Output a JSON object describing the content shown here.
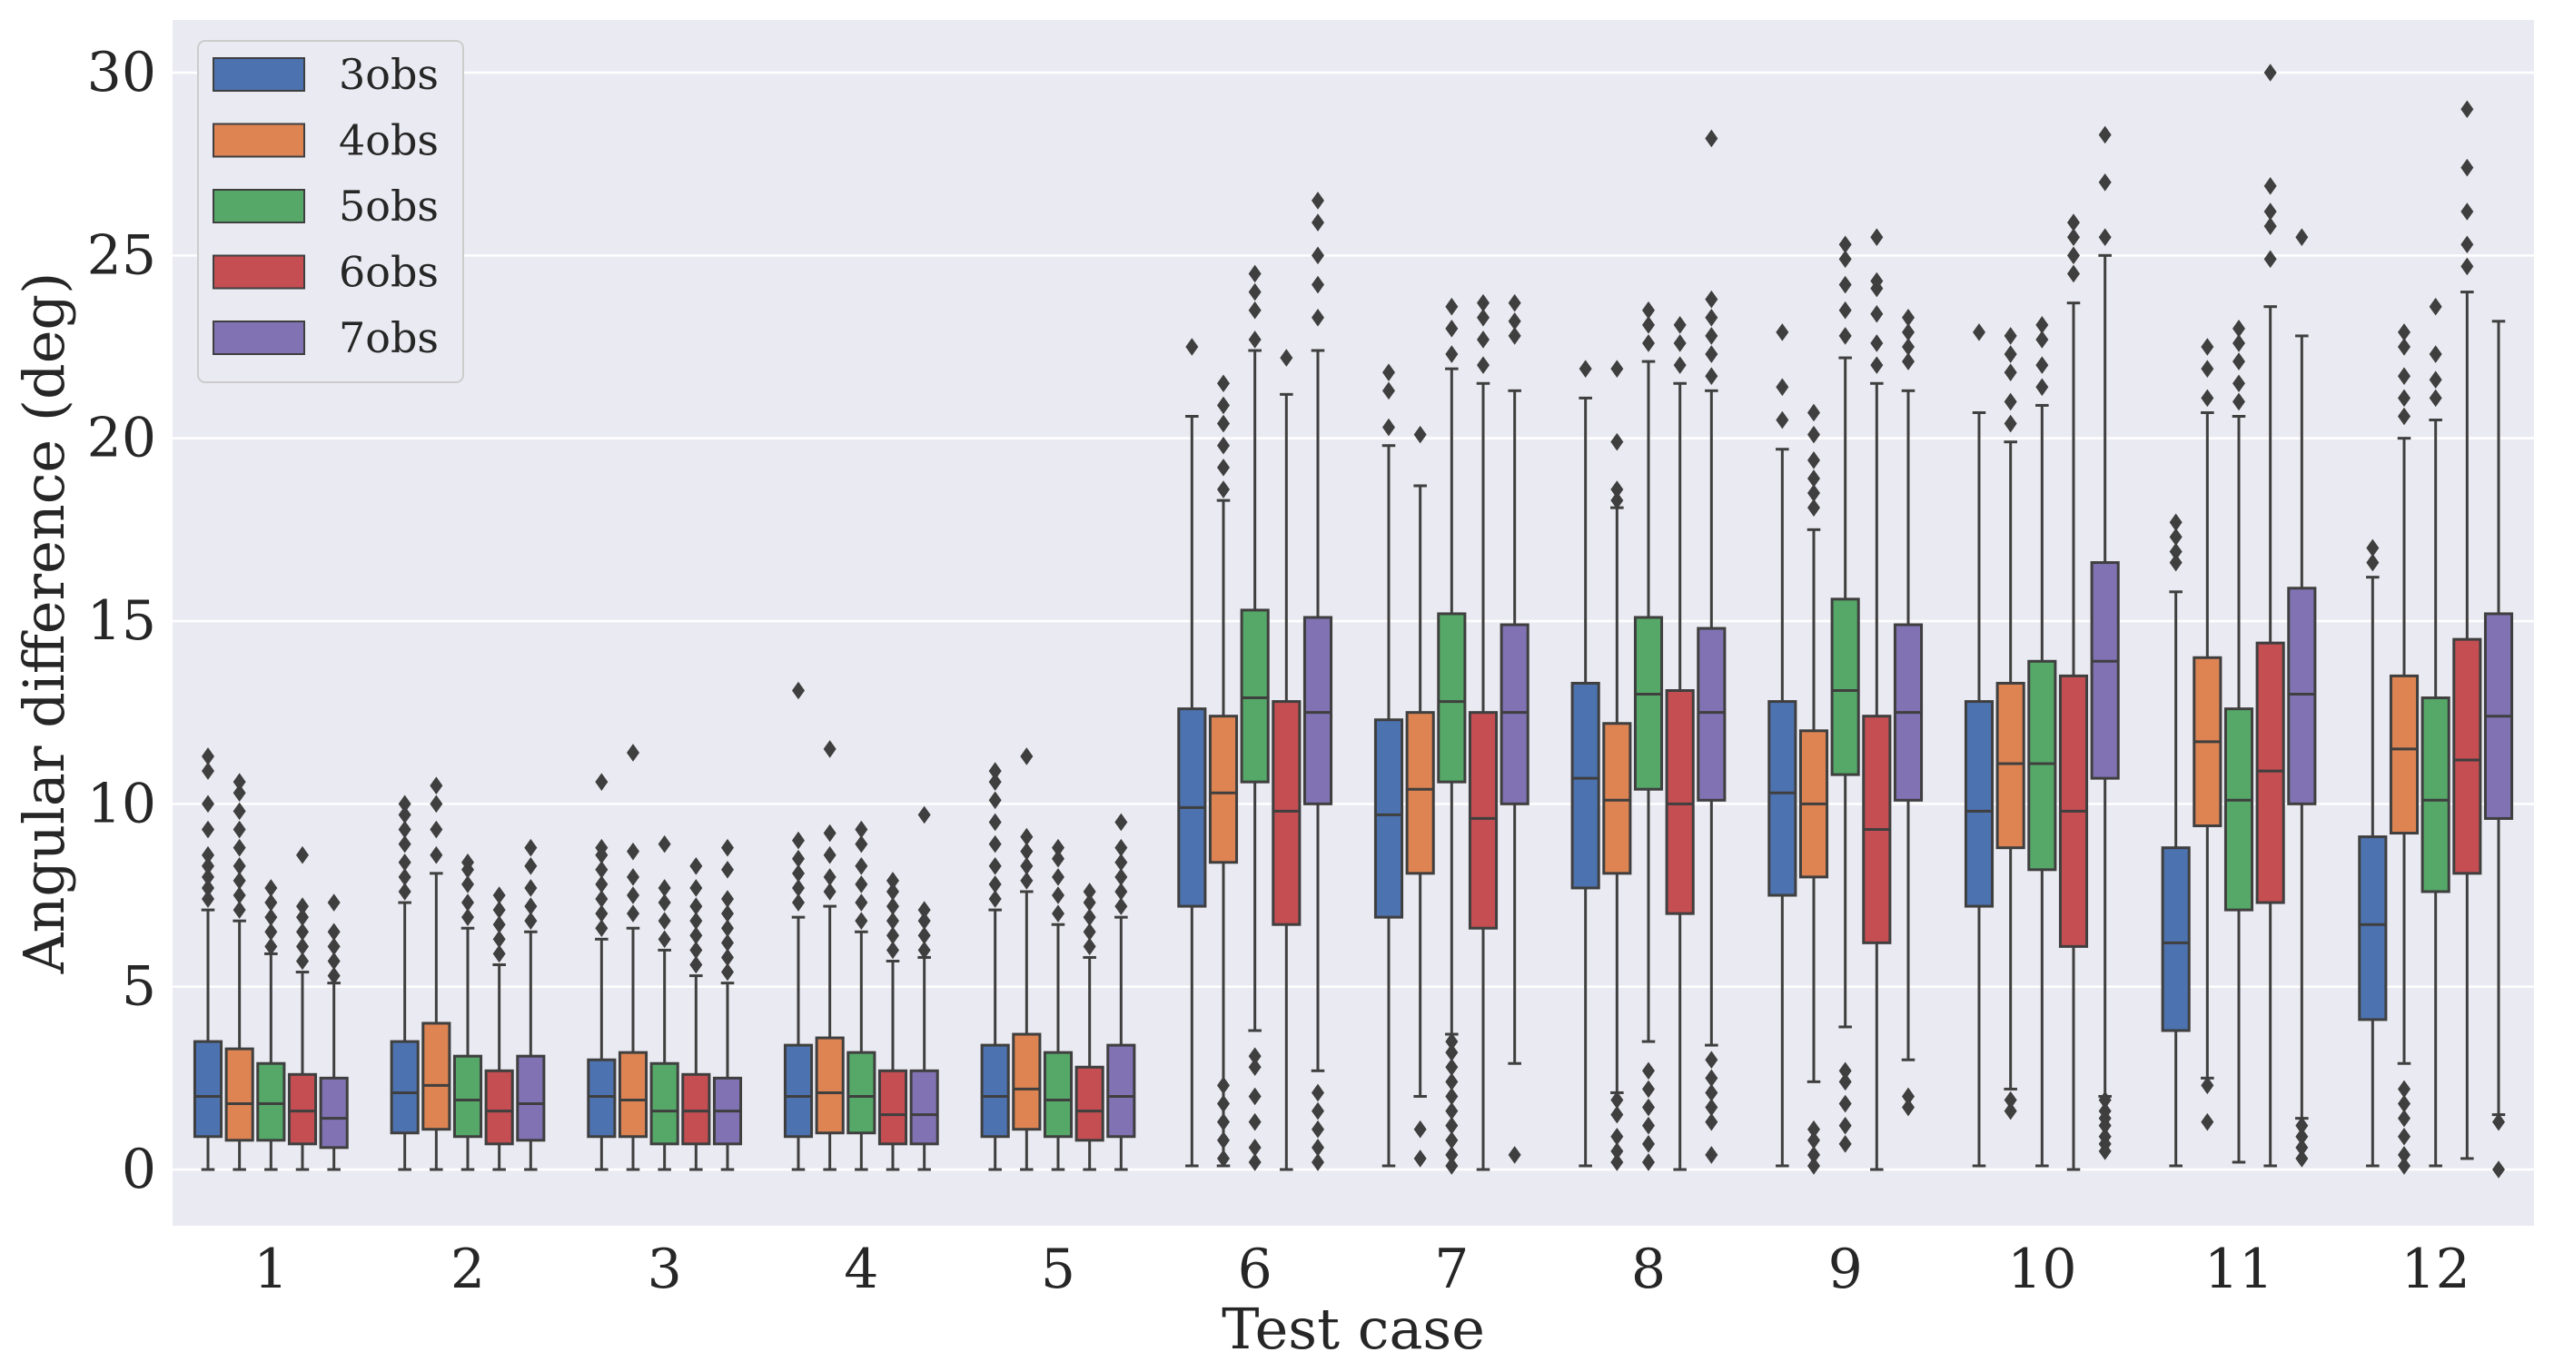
{
  "chart_data": {
    "type": "boxplot",
    "title": "",
    "xlabel": "Test case",
    "ylabel": "Angular difference (deg)",
    "ylim": [
      -1.5,
      31.5
    ],
    "yticks": [
      0,
      5,
      10,
      15,
      20,
      25,
      30
    ],
    "grid": "horizontal",
    "legend_position": "top-left",
    "categories": [
      "1",
      "2",
      "3",
      "4",
      "5",
      "6",
      "7",
      "8",
      "9",
      "10",
      "11",
      "12"
    ],
    "series": [
      {
        "name": "3obs",
        "color": "#4c72b0",
        "stats": [
          {
            "whislo": 0.0,
            "q1": 0.9,
            "med": 2.0,
            "q3": 3.5,
            "whishi": 7.1,
            "fliers": [
              7.4,
              7.7,
              8.0,
              8.3,
              8.6,
              9.3,
              10.0,
              10.9,
              11.3
            ]
          },
          {
            "whislo": 0.0,
            "q1": 1.0,
            "med": 2.1,
            "q3": 3.5,
            "whishi": 7.3,
            "fliers": [
              7.6,
              8.0,
              8.4,
              8.9,
              9.3,
              9.7,
              10.0
            ]
          },
          {
            "whislo": 0.0,
            "q1": 0.9,
            "med": 2.0,
            "q3": 3.0,
            "whishi": 6.3,
            "fliers": [
              6.6,
              7.0,
              7.4,
              7.8,
              8.2,
              8.6,
              8.8,
              10.6
            ]
          },
          {
            "whislo": 0.0,
            "q1": 0.9,
            "med": 2.0,
            "q3": 3.4,
            "whishi": 6.9,
            "fliers": [
              7.3,
              7.7,
              8.1,
              8.5,
              9.0,
              13.1
            ]
          },
          {
            "whislo": 0.0,
            "q1": 0.9,
            "med": 2.0,
            "q3": 3.4,
            "whishi": 7.1,
            "fliers": [
              7.4,
              7.8,
              8.3,
              8.9,
              9.5,
              10.1,
              10.6,
              10.9
            ]
          },
          {
            "whislo": 0.1,
            "q1": 7.2,
            "med": 9.9,
            "q3": 12.6,
            "whishi": 20.6,
            "fliers": [
              22.5
            ]
          },
          {
            "whislo": 0.1,
            "q1": 6.9,
            "med": 9.7,
            "q3": 12.3,
            "whishi": 19.8,
            "fliers": [
              20.3,
              21.3,
              21.8
            ]
          },
          {
            "whislo": 0.1,
            "q1": 7.7,
            "med": 10.7,
            "q3": 13.3,
            "whishi": 21.1,
            "fliers": [
              21.9
            ]
          },
          {
            "whislo": 0.1,
            "q1": 7.5,
            "med": 10.3,
            "q3": 12.8,
            "whishi": 19.7,
            "fliers": [
              20.5,
              21.4,
              22.9
            ]
          },
          {
            "whislo": 0.1,
            "q1": 7.2,
            "med": 9.8,
            "q3": 12.8,
            "whishi": 20.7,
            "fliers": [
              22.9
            ]
          },
          {
            "whislo": 0.1,
            "q1": 3.8,
            "med": 6.2,
            "q3": 8.8,
            "whishi": 15.8,
            "fliers": [
              16.6,
              16.9,
              17.3,
              17.7
            ]
          },
          {
            "whislo": 0.1,
            "q1": 4.1,
            "med": 6.7,
            "q3": 9.1,
            "whishi": 16.2,
            "fliers": [
              16.6,
              17.0
            ]
          }
        ]
      },
      {
        "name": "4obs",
        "color": "#dd8452",
        "stats": [
          {
            "whislo": 0.0,
            "q1": 0.8,
            "med": 1.8,
            "q3": 3.3,
            "whishi": 6.8,
            "fliers": [
              7.1,
              7.5,
              7.9,
              8.3,
              8.8,
              9.3,
              9.8,
              10.3,
              10.6
            ]
          },
          {
            "whislo": 0.0,
            "q1": 1.1,
            "med": 2.3,
            "q3": 4.0,
            "whishi": 8.1,
            "fliers": [
              8.6,
              9.3,
              10.0,
              10.5
            ]
          },
          {
            "whislo": 0.0,
            "q1": 0.9,
            "med": 1.9,
            "q3": 3.2,
            "whishi": 6.6,
            "fliers": [
              7.0,
              7.5,
              8.0,
              8.7,
              11.4
            ]
          },
          {
            "whislo": 0.0,
            "q1": 1.0,
            "med": 2.1,
            "q3": 3.6,
            "whishi": 7.2,
            "fliers": [
              7.6,
              8.0,
              8.6,
              9.2,
              11.5
            ]
          },
          {
            "whislo": 0.0,
            "q1": 1.1,
            "med": 2.2,
            "q3": 3.7,
            "whishi": 7.6,
            "fliers": [
              7.9,
              8.3,
              8.7,
              9.1,
              11.3
            ]
          },
          {
            "whislo": 0.1,
            "q1": 8.4,
            "med": 10.3,
            "q3": 12.4,
            "whishi": 18.3,
            "fliers": [
              0.3,
              0.8,
              1.3,
              1.8,
              2.3,
              18.6,
              19.2,
              19.8,
              20.4,
              20.9,
              21.5
            ]
          },
          {
            "whislo": 2.0,
            "q1": 8.1,
            "med": 10.4,
            "q3": 12.5,
            "whishi": 18.7,
            "fliers": [
              0.3,
              1.1,
              20.1
            ]
          },
          {
            "whislo": 2.1,
            "q1": 8.1,
            "med": 10.1,
            "q3": 12.2,
            "whishi": 18.1,
            "fliers": [
              0.2,
              0.5,
              0.9,
              1.5,
              1.9,
              18.3,
              18.6,
              19.9,
              21.9
            ]
          },
          {
            "whislo": 2.4,
            "q1": 8.0,
            "med": 10.0,
            "q3": 12.0,
            "whishi": 17.5,
            "fliers": [
              0.1,
              0.4,
              0.8,
              1.1,
              18.1,
              18.5,
              18.9,
              19.4,
              20.1,
              20.7
            ]
          },
          {
            "whislo": 2.2,
            "q1": 8.8,
            "med": 11.1,
            "q3": 13.3,
            "whishi": 19.9,
            "fliers": [
              1.6,
              1.9,
              20.4,
              21.0,
              21.8,
              22.3,
              22.8
            ]
          },
          {
            "whislo": 2.5,
            "q1": 9.4,
            "med": 11.7,
            "q3": 14.0,
            "whishi": 20.7,
            "fliers": [
              1.3,
              2.3,
              21.1,
              21.9,
              22.5
            ]
          },
          {
            "whislo": 2.9,
            "q1": 9.2,
            "med": 11.5,
            "q3": 13.5,
            "whishi": 20.0,
            "fliers": [
              0.1,
              0.4,
              0.9,
              1.4,
              1.8,
              2.2,
              20.6,
              21.1,
              21.7,
              22.5,
              22.9
            ]
          }
        ]
      },
      {
        "name": "5obs",
        "color": "#55a868",
        "stats": [
          {
            "whislo": 0.0,
            "q1": 0.8,
            "med": 1.8,
            "q3": 2.9,
            "whishi": 5.9,
            "fliers": [
              6.1,
              6.5,
              6.9,
              7.3,
              7.7
            ]
          },
          {
            "whislo": 0.0,
            "q1": 0.9,
            "med": 1.9,
            "q3": 3.1,
            "whishi": 6.6,
            "fliers": [
              6.9,
              7.3,
              7.8,
              8.2,
              8.4
            ]
          },
          {
            "whislo": 0.0,
            "q1": 0.7,
            "med": 1.6,
            "q3": 2.9,
            "whishi": 6.0,
            "fliers": [
              6.3,
              6.8,
              7.3,
              7.7,
              8.9
            ]
          },
          {
            "whislo": 0.0,
            "q1": 1.0,
            "med": 2.0,
            "q3": 3.2,
            "whishi": 6.5,
            "fliers": [
              6.8,
              7.3,
              7.8,
              8.3,
              8.9,
              9.3
            ]
          },
          {
            "whislo": 0.0,
            "q1": 0.9,
            "med": 1.9,
            "q3": 3.2,
            "whishi": 6.7,
            "fliers": [
              7.0,
              7.5,
              8.0,
              8.5,
              8.8
            ]
          },
          {
            "whislo": 3.8,
            "q1": 10.6,
            "med": 12.9,
            "q3": 15.3,
            "whishi": 22.4,
            "fliers": [
              0.2,
              0.6,
              1.3,
              2.0,
              2.8,
              3.1,
              22.7,
              23.5,
              24.0,
              24.5
            ]
          },
          {
            "whislo": 3.7,
            "q1": 10.6,
            "med": 12.8,
            "q3": 15.2,
            "whishi": 21.9,
            "fliers": [
              0.1,
              0.4,
              0.8,
              1.2,
              1.6,
              2.0,
              2.4,
              2.8,
              3.2,
              3.5,
              22.3,
              23.0,
              23.6
            ]
          },
          {
            "whislo": 3.5,
            "q1": 10.4,
            "med": 13.0,
            "q3": 15.1,
            "whishi": 22.1,
            "fliers": [
              0.2,
              0.7,
              1.2,
              1.7,
              2.2,
              2.7,
              22.6,
              23.1,
              23.5
            ]
          },
          {
            "whislo": 3.9,
            "q1": 10.8,
            "med": 13.1,
            "q3": 15.6,
            "whishi": 22.2,
            "fliers": [
              0.7,
              1.2,
              1.8,
              2.4,
              2.7,
              22.8,
              23.5,
              24.2,
              24.9,
              25.3
            ]
          },
          {
            "whislo": 0.1,
            "q1": 8.2,
            "med": 11.1,
            "q3": 13.9,
            "whishi": 20.9,
            "fliers": [
              21.4,
              22.0,
              22.7,
              23.1
            ]
          },
          {
            "whislo": 0.2,
            "q1": 7.1,
            "med": 10.1,
            "q3": 12.6,
            "whishi": 20.6,
            "fliers": [
              21.0,
              21.5,
              22.1,
              22.6,
              23.0
            ]
          },
          {
            "whislo": 0.1,
            "q1": 7.6,
            "med": 10.1,
            "q3": 12.9,
            "whishi": 20.5,
            "fliers": [
              21.1,
              21.6,
              22.3,
              23.6
            ]
          }
        ]
      },
      {
        "name": "6obs",
        "color": "#c44e52",
        "stats": [
          {
            "whislo": 0.0,
            "q1": 0.7,
            "med": 1.6,
            "q3": 2.6,
            "whishi": 5.4,
            "fliers": [
              5.7,
              6.1,
              6.5,
              6.9,
              7.2,
              8.6
            ]
          },
          {
            "whislo": 0.0,
            "q1": 0.7,
            "med": 1.6,
            "q3": 2.7,
            "whishi": 5.6,
            "fliers": [
              5.9,
              6.3,
              6.7,
              7.1,
              7.5
            ]
          },
          {
            "whislo": 0.0,
            "q1": 0.7,
            "med": 1.6,
            "q3": 2.6,
            "whishi": 5.3,
            "fliers": [
              5.6,
              6.0,
              6.4,
              6.8,
              7.2,
              7.7,
              8.3
            ]
          },
          {
            "whislo": 0.0,
            "q1": 0.7,
            "med": 1.5,
            "q3": 2.7,
            "whishi": 5.7,
            "fliers": [
              6.0,
              6.4,
              6.8,
              7.2,
              7.6,
              7.9
            ]
          },
          {
            "whislo": 0.0,
            "q1": 0.8,
            "med": 1.6,
            "q3": 2.8,
            "whishi": 5.8,
            "fliers": [
              6.1,
              6.5,
              6.9,
              7.3,
              7.6
            ]
          },
          {
            "whislo": 0.0,
            "q1": 6.7,
            "med": 9.8,
            "q3": 12.8,
            "whishi": 21.2,
            "fliers": [
              22.2
            ]
          },
          {
            "whislo": 0.0,
            "q1": 6.6,
            "med": 9.6,
            "q3": 12.5,
            "whishi": 21.5,
            "fliers": [
              22.0,
              22.7,
              23.3,
              23.7
            ]
          },
          {
            "whislo": 0.0,
            "q1": 7.0,
            "med": 10.0,
            "q3": 13.1,
            "whishi": 21.5,
            "fliers": [
              22.0,
              22.6,
              23.1
            ]
          },
          {
            "whislo": 0.0,
            "q1": 6.2,
            "med": 9.3,
            "q3": 12.4,
            "whishi": 21.5,
            "fliers": [
              22.0,
              22.6,
              23.4,
              24.1,
              24.3,
              25.5
            ]
          },
          {
            "whislo": 0.0,
            "q1": 6.1,
            "med": 9.8,
            "q3": 13.5,
            "whishi": 23.7,
            "fliers": [
              24.5,
              25.0,
              25.5,
              25.9
            ]
          },
          {
            "whislo": 0.1,
            "q1": 7.3,
            "med": 10.9,
            "q3": 14.4,
            "whishi": 23.6,
            "fliers": [
              24.9,
              25.8,
              26.2,
              26.9,
              30.0
            ]
          },
          {
            "whislo": 0.3,
            "q1": 8.1,
            "med": 11.2,
            "q3": 14.5,
            "whishi": 24.0,
            "fliers": [
              24.7,
              25.3,
              26.2,
              27.4,
              29.0
            ]
          }
        ]
      },
      {
        "name": "7obs",
        "color": "#8172b3",
        "stats": [
          {
            "whislo": 0.0,
            "q1": 0.6,
            "med": 1.4,
            "q3": 2.5,
            "whishi": 5.1,
            "fliers": [
              5.3,
              5.7,
              6.1,
              6.5,
              7.3
            ]
          },
          {
            "whislo": 0.0,
            "q1": 0.8,
            "med": 1.8,
            "q3": 3.1,
            "whishi": 6.5,
            "fliers": [
              6.8,
              7.2,
              7.7,
              8.3,
              8.8
            ]
          },
          {
            "whislo": 0.0,
            "q1": 0.7,
            "med": 1.6,
            "q3": 2.5,
            "whishi": 5.1,
            "fliers": [
              5.4,
              5.8,
              6.2,
              6.6,
              7.0,
              7.4,
              8.2,
              8.8
            ]
          },
          {
            "whislo": 0.0,
            "q1": 0.7,
            "med": 1.5,
            "q3": 2.7,
            "whishi": 5.8,
            "fliers": [
              6.0,
              6.4,
              6.8,
              7.1,
              9.7
            ]
          },
          {
            "whislo": 0.0,
            "q1": 0.9,
            "med": 2.0,
            "q3": 3.4,
            "whishi": 6.9,
            "fliers": [
              7.2,
              7.6,
              8.0,
              8.4,
              8.8,
              9.5
            ]
          },
          {
            "whislo": 2.7,
            "q1": 10.0,
            "med": 12.5,
            "q3": 15.1,
            "whishi": 22.4,
            "fliers": [
              0.2,
              0.6,
              1.1,
              1.6,
              2.1,
              23.3,
              24.2,
              25.0,
              25.9,
              26.5
            ]
          },
          {
            "whislo": 2.9,
            "q1": 10.0,
            "med": 12.5,
            "q3": 14.9,
            "whishi": 21.3,
            "fliers": [
              0.4,
              22.8,
              23.2,
              23.7
            ]
          },
          {
            "whislo": 3.4,
            "q1": 10.1,
            "med": 12.5,
            "q3": 14.8,
            "whishi": 21.3,
            "fliers": [
              0.4,
              1.3,
              1.7,
              2.1,
              2.5,
              3.0,
              21.7,
              22.3,
              22.8,
              23.3,
              23.8,
              28.2
            ]
          },
          {
            "whislo": 3.0,
            "q1": 10.1,
            "med": 12.5,
            "q3": 14.9,
            "whishi": 21.3,
            "fliers": [
              1.7,
              2.0,
              22.1,
              22.5,
              22.9,
              23.3
            ]
          },
          {
            "whislo": 2.0,
            "q1": 10.7,
            "med": 13.9,
            "q3": 16.6,
            "whishi": 25.0,
            "fliers": [
              0.5,
              0.7,
              0.9,
              1.2,
              1.4,
              1.6,
              1.9,
              25.5,
              27.0,
              28.3
            ]
          },
          {
            "whislo": 1.4,
            "q1": 10.0,
            "med": 13.0,
            "q3": 15.9,
            "whishi": 22.8,
            "fliers": [
              0.3,
              0.6,
              0.9,
              1.2,
              25.5
            ]
          },
          {
            "whislo": 1.5,
            "q1": 9.6,
            "med": 12.4,
            "q3": 15.2,
            "whishi": 23.2,
            "fliers": [
              0.0,
              1.3
            ]
          }
        ]
      }
    ]
  }
}
